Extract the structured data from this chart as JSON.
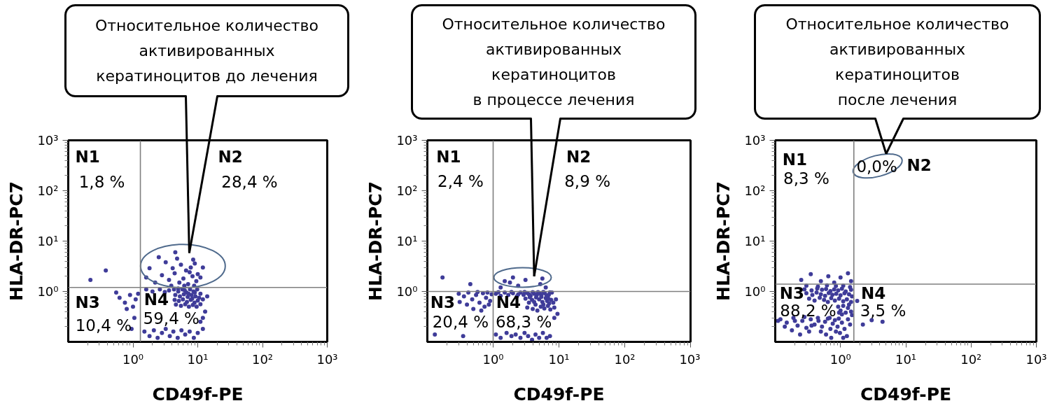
{
  "chart_data": [
    {
      "type": "scatter",
      "title": "Относительное количество\nактивированных\nкератиноцитов до лечения",
      "xlabel": "CD49f-PE",
      "ylabel": "HLA-DR-PC7",
      "log": "xy",
      "xlim": [
        0.1,
        1000
      ],
      "ylim": [
        0.1,
        1000
      ],
      "xticks": [
        {
          "value": 1,
          "label": "10⁰"
        },
        {
          "value": 10,
          "label": "10¹"
        },
        {
          "value": 100,
          "label": "10²"
        },
        {
          "value": 1000,
          "label": "10³"
        }
      ],
      "yticks": [
        {
          "value": 1,
          "label": "10⁰"
        },
        {
          "value": 10,
          "label": "10¹"
        },
        {
          "value": 100,
          "label": "10²"
        },
        {
          "value": 1000,
          "label": "10³"
        }
      ],
      "marker": "circle",
      "ref_lines": [
        {
          "axis": "x",
          "value": 1.3,
          "color": "#7f7f7f"
        },
        {
          "axis": "y",
          "value": 1.2,
          "color": "#7f7f7f"
        }
      ],
      "annotations": [
        "N1",
        "1,8 %",
        "N2",
        "28,4 %",
        "N3",
        "10,4 %",
        "N4",
        "59,4 %"
      ],
      "series": [
        {
          "color": "#3f3c99",
          "x": [
            5.2,
            6.0,
            7.1,
            8.3,
            9.5,
            4.4,
            6.6,
            7.8,
            10,
            5.5,
            3.6,
            2.8,
            2.2,
            1.8,
            3.2,
            4.8,
            8.5,
            9.0,
            11,
            6.2,
            8.8,
            3.9,
            2.5,
            1.6,
            4.5,
            12,
            4.1,
            7.5,
            4.3,
            5.0,
            5.8,
            6.7,
            7.6,
            8.6,
            9.8,
            11,
            4.5,
            5.3,
            6.1,
            7.0,
            8.0,
            9.2,
            10.5,
            4.4,
            5.1,
            5.9,
            6.8,
            7.8,
            8.9,
            10,
            12,
            4.6,
            5.5,
            6.4,
            7.3,
            8.4,
            9.6,
            11,
            5.0,
            6.3,
            7.2,
            8.2,
            9.0,
            1.6,
            2.0,
            2.6,
            3.1,
            3.6,
            13,
            12,
            14,
            1.5,
            1.8,
            2.1,
            2.4,
            2.8,
            3.2,
            3.7,
            4.2,
            4.9,
            5.6,
            6.4,
            7.5,
            8.7,
            10,
            11,
            12,
            0.62,
            0.75,
            0.9,
            1.1,
            0.8,
            1.0,
            1.2,
            0.55,
            1.05,
            0.95,
            0.38,
            0.22
          ],
          "values": [
            1.5,
            1.8,
            1.4,
            2.0,
            1.6,
            2.3,
            2.6,
            3.0,
            2.2,
            3.4,
            1.7,
            2.1,
            1.5,
            2.9,
            3.8,
            4.5,
            4.3,
            3.6,
            1.9,
            1.3,
            1.3,
            1.3,
            4.8,
            1.9,
            6.0,
            3.0,
            2.9,
            2.4,
            1.1,
            1.0,
            1.1,
            0.95,
            1.1,
            1.0,
            1.1,
            0.9,
            0.85,
            0.8,
            0.88,
            0.78,
            0.85,
            0.8,
            0.75,
            0.68,
            0.65,
            0.7,
            0.62,
            0.68,
            0.6,
            0.66,
            0.7,
            0.55,
            0.52,
            0.56,
            0.5,
            0.54,
            0.5,
            0.56,
            1.15,
            1.05,
            0.9,
            0.72,
            0.95,
            1.1,
            1.0,
            1.1,
            0.98,
            1.05,
            0.4,
            0.3,
            0.8,
            0.16,
            0.13,
            0.17,
            0.12,
            0.15,
            0.18,
            0.13,
            0.16,
            0.12,
            0.17,
            0.14,
            0.16,
            0.12,
            0.15,
            0.25,
            0.18,
            0.75,
            0.6,
            0.85,
            0.7,
            0.45,
            0.5,
            0.9,
            0.95,
            0.3,
            0.18,
            2.6,
            1.7
          ]
        }
      ]
    },
    {
      "type": "scatter",
      "title": "Относительное количество\nактивированных\nкератиноцитов\nв процессе лечения",
      "xlabel": "CD49f-PE",
      "ylabel": "HLA-DR-PC7",
      "log": "xy",
      "xlim": [
        0.1,
        1000
      ],
      "ylim": [
        0.1,
        1000
      ],
      "xticks": [
        {
          "value": 1,
          "label": "10⁰"
        },
        {
          "value": 10,
          "label": "10¹"
        },
        {
          "value": 100,
          "label": "10²"
        },
        {
          "value": 1000,
          "label": "10³"
        }
      ],
      "yticks": [
        {
          "value": 1,
          "label": "10⁰"
        },
        {
          "value": 10,
          "label": "10¹"
        },
        {
          "value": 100,
          "label": "10²"
        },
        {
          "value": 1000,
          "label": "10³"
        }
      ],
      "marker": "circle",
      "ref_lines": [
        {
          "axis": "x",
          "value": 1.0,
          "color": "#7f7f7f"
        },
        {
          "axis": "y",
          "value": 1.0,
          "color": "#7f7f7f"
        }
      ],
      "annotations": [
        "N1",
        "2,4 %",
        "N2",
        "8,9 %",
        "N3",
        "20,4 %",
        "N4",
        "68,3 %"
      ],
      "series": [
        {
          "color": "#3f3c99",
          "x": [
            1.3,
            1.8,
            2.4,
            3.1,
            5.2,
            6.3,
            2.0,
            1.5,
            5.6,
            1.1,
            1.3,
            1.5,
            1.7,
            2.0,
            2.3,
            2.6,
            2.9,
            3.3,
            3.7,
            4.2,
            4.8,
            5.4,
            6.1,
            7.0,
            7.8,
            3.1,
            3.5,
            3.9,
            4.4,
            5.0,
            5.6,
            6.3,
            7.1,
            3.3,
            4.0,
            4.7,
            5.3,
            6.0,
            6.8,
            7.6,
            8.2,
            3.6,
            4.5,
            5.8,
            6.6,
            7.4,
            8.5,
            9.0,
            8.5,
            9.5,
            1.1,
            1.3,
            1.6,
            1.9,
            2.2,
            2.6,
            3.0,
            3.4,
            3.9,
            4.4,
            5.0,
            5.7,
            6.5,
            7.3,
            1.2,
            1.9,
            2.4,
            3.0,
            3.5,
            4.0,
            4.6,
            5.1,
            5.8,
            6.5,
            7.3,
            4.2,
            5.4,
            6.9,
            0.3,
            0.36,
            0.42,
            0.48,
            0.55,
            0.62,
            0.7,
            0.78,
            0.86,
            0.95,
            0.4,
            0.5,
            0.66,
            0.82,
            0.9,
            0.31,
            0.58,
            0.74,
            0.13,
            0.35,
            0.17,
            0.45
          ],
          "values": [
            1.2,
            1.5,
            1.3,
            1.7,
            1.4,
            1.2,
            1.9,
            1.6,
            1.8,
            0.9,
            0.82,
            0.95,
            0.85,
            0.92,
            0.8,
            0.95,
            0.86,
            0.93,
            0.82,
            0.9,
            0.97,
            0.84,
            0.92,
            0.86,
            0.95,
            0.72,
            0.6,
            0.68,
            0.55,
            0.7,
            0.62,
            0.74,
            0.58,
            0.48,
            0.45,
            0.42,
            0.5,
            0.46,
            0.52,
            0.68,
            0.6,
            0.77,
            0.76,
            0.55,
            0.65,
            0.44,
            0.48,
            0.7,
            0.3,
            0.36,
            0.14,
            0.12,
            0.15,
            0.13,
            0.14,
            0.12,
            0.15,
            0.13,
            0.11,
            0.14,
            0.12,
            0.15,
            0.12,
            0.13,
            0.97,
            0.98,
            0.87,
            0.98,
            0.88,
            0.97,
            0.85,
            0.92,
            0.98,
            0.83,
            0.96,
            0.62,
            0.78,
            0.72,
            0.9,
            0.8,
            0.95,
            0.7,
            0.85,
            0.6,
            0.92,
            0.75,
            0.55,
            0.88,
            0.55,
            0.45,
            0.42,
            0.95,
            0.65,
            0.62,
            0.98,
            0.5,
            0.14,
            0.13,
            1.9,
            1.4
          ]
        }
      ]
    },
    {
      "type": "scatter",
      "title": "Относительное количество\nактивированных\nкератиноцитов\nпосле лечения",
      "xlabel": "CD49f-PE",
      "ylabel": "HLA-DR-PC7",
      "log": "xy",
      "xlim": [
        0.1,
        1000
      ],
      "ylim": [
        0.1,
        1000
      ],
      "xticks": [
        {
          "value": 1,
          "label": "10⁰"
        },
        {
          "value": 10,
          "label": "10¹"
        },
        {
          "value": 100,
          "label": "10²"
        },
        {
          "value": 1000,
          "label": "10³"
        }
      ],
      "yticks": [
        {
          "value": 1,
          "label": "10⁰"
        },
        {
          "value": 10,
          "label": "10¹"
        },
        {
          "value": 100,
          "label": "10²"
        },
        {
          "value": 1000,
          "label": "10³"
        }
      ],
      "marker": "circle",
      "ref_lines": [
        {
          "axis": "x",
          "value": 1.6,
          "color": "#7f7f7f"
        },
        {
          "axis": "y",
          "value": 1.4,
          "color": "#7f7f7f"
        }
      ],
      "annotations": [
        "N1",
        "8,3 %",
        "N2",
        "0,0%",
        "N3",
        "88,2 %",
        "N4",
        "3,5 %"
      ],
      "series": [
        {
          "color": "#3f3c99",
          "x": [
            0.3,
            0.45,
            0.62,
            0.85,
            1.1,
            1.4,
            0.28,
            0.36,
            0.44,
            0.52,
            0.6,
            0.7,
            0.8,
            0.92,
            1.05,
            1.2,
            1.45,
            0.3,
            0.37,
            0.43,
            0.5,
            0.58,
            0.66,
            0.75,
            0.86,
            1.0,
            1.15,
            1.35,
            1.5,
            0.33,
            0.4,
            0.48,
            0.56,
            0.64,
            0.72,
            0.82,
            0.95,
            1.1,
            1.25,
            1.45,
            0.92,
            1.0,
            1.1,
            1.2,
            1.3,
            1.45,
            1.05,
            1.35,
            1.5,
            0.95,
            0.35,
            0.4,
            0.46,
            0.52,
            0.58,
            0.64,
            0.7,
            0.76,
            0.82,
            0.9,
            0.98,
            1.05,
            1.15,
            1.25,
            1.4,
            0.6,
            0.72,
            0.85,
            1.1,
            0.5,
            0.45,
            0.68,
            0.94,
            1.3,
            0.12,
            0.15,
            0.19,
            0.22,
            0.26,
            0.3,
            0.18,
            0.14,
            0.24,
            0.28,
            0.33,
            0.11,
            0.2,
            0.36,
            1.8,
            2.2,
            3.0,
            4.4,
            0.25,
            0.35,
            0.5,
            0.65,
            0.8,
            1.0,
            1.3,
            1.45
          ],
          "values": [
            1.3,
            1.25,
            1.32,
            1.28,
            1.3,
            1.22,
            1.1,
            1.05,
            1.15,
            1.08,
            1.12,
            1.02,
            1.1,
            1.05,
            1.14,
            1.0,
            1.08,
            0.92,
            0.85,
            0.95,
            0.88,
            0.82,
            0.93,
            0.86,
            0.9,
            0.84,
            0.92,
            0.88,
            0.8,
            0.72,
            0.66,
            0.75,
            0.68,
            0.62,
            0.74,
            0.66,
            0.72,
            0.64,
            0.7,
            0.62,
            0.5,
            0.42,
            0.52,
            0.38,
            0.47,
            0.4,
            0.35,
            0.55,
            0.34,
            0.38,
            0.28,
            0.22,
            0.26,
            0.2,
            0.25,
            0.29,
            0.18,
            0.23,
            0.27,
            0.2,
            0.15,
            0.24,
            0.18,
            0.13,
            0.22,
            0.14,
            0.12,
            0.16,
            0.12,
            0.16,
            0.3,
            0.3,
            0.29,
            0.28,
            0.28,
            0.24,
            0.3,
            0.21,
            0.26,
            0.19,
            0.17,
            0.2,
            0.14,
            0.31,
            0.16,
            0.26,
            0.26,
            0.21,
            0.65,
            0.22,
            0.27,
            0.25,
            1.7,
            2.2,
            1.6,
            2.0,
            1.5,
            1.9,
            2.3,
            1.6
          ]
        }
      ]
    }
  ]
}
